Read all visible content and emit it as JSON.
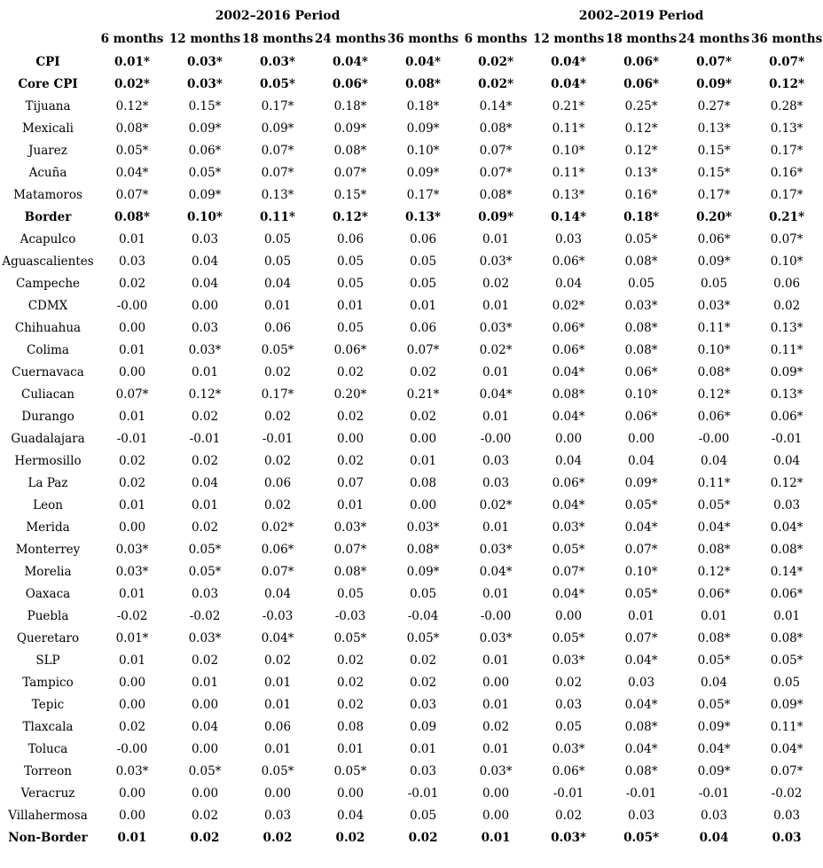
{
  "table": {
    "period_headers": [
      "2002–2016 Period",
      "2002–2019 Period"
    ],
    "column_headers": [
      "6 months",
      "12 months",
      "18 months",
      "24 months",
      "36 months",
      "6 months",
      "12 months",
      "18 months",
      "24 months",
      "36 months"
    ],
    "rows": [
      {
        "label": "CPI",
        "bold": true,
        "values": [
          "0.01*",
          "0.03*",
          "0.03*",
          "0.04*",
          "0.04*",
          "0.02*",
          "0.04*",
          "0.06*",
          "0.07*",
          "0.07*"
        ]
      },
      {
        "label": "Core CPI",
        "bold": true,
        "values": [
          "0.02*",
          "0.03*",
          "0.05*",
          "0.06*",
          "0.08*",
          "0.02*",
          "0.04*",
          "0.06*",
          "0.09*",
          "0.12*"
        ]
      },
      {
        "label": "Tijuana",
        "bold": false,
        "values": [
          "0.12*",
          "0.15*",
          "0.17*",
          "0.18*",
          "0.18*",
          "0.14*",
          "0.21*",
          "0.25*",
          "0.27*",
          "0.28*"
        ]
      },
      {
        "label": "Mexicali",
        "bold": false,
        "values": [
          "0.08*",
          "0.09*",
          "0.09*",
          "0.09*",
          "0.09*",
          "0.08*",
          "0.11*",
          "0.12*",
          "0.13*",
          "0.13*"
        ]
      },
      {
        "label": "Juarez",
        "bold": false,
        "values": [
          "0.05*",
          "0.06*",
          "0.07*",
          "0.08*",
          "0.10*",
          "0.07*",
          "0.10*",
          "0.12*",
          "0.15*",
          "0.17*"
        ]
      },
      {
        "label": "Acuña",
        "bold": false,
        "values": [
          "0.04*",
          "0.05*",
          "0.07*",
          "0.07*",
          "0.09*",
          "0.07*",
          "0.11*",
          "0.13*",
          "0.15*",
          "0.16*"
        ]
      },
      {
        "label": "Matamoros",
        "bold": false,
        "values": [
          "0.07*",
          "0.09*",
          "0.13*",
          "0.15*",
          "0.17*",
          "0.08*",
          "0.13*",
          "0.16*",
          "0.17*",
          "0.17*"
        ]
      },
      {
        "label": "Border",
        "bold": true,
        "values": [
          "0.08*",
          "0.10*",
          "0.11*",
          "0.12*",
          "0.13*",
          "0.09*",
          "0.14*",
          "0.18*",
          "0.20*",
          "0.21*"
        ]
      },
      {
        "label": "Acapulco",
        "bold": false,
        "values": [
          "0.01",
          "0.03",
          "0.05",
          "0.06",
          "0.06",
          "0.01",
          "0.03",
          "0.05*",
          "0.06*",
          "0.07*"
        ]
      },
      {
        "label": "Aguascalientes",
        "bold": false,
        "values": [
          "0.03",
          "0.04",
          "0.05",
          "0.05",
          "0.05",
          "0.03*",
          "0.06*",
          "0.08*",
          "0.09*",
          "0.10*"
        ]
      },
      {
        "label": "Campeche",
        "bold": false,
        "values": [
          "0.02",
          "0.04",
          "0.04",
          "0.05",
          "0.05",
          "0.02",
          "0.04",
          "0.05",
          "0.05",
          "0.06"
        ]
      },
      {
        "label": "CDMX",
        "bold": false,
        "values": [
          "-0.00",
          "0.00",
          "0.01",
          "0.01",
          "0.01",
          "0.01",
          "0.02*",
          "0.03*",
          "0.03*",
          "0.02"
        ]
      },
      {
        "label": "Chihuahua",
        "bold": false,
        "values": [
          "0.00",
          "0.03",
          "0.06",
          "0.05",
          "0.06",
          "0.03*",
          "0.06*",
          "0.08*",
          "0.11*",
          "0.13*"
        ]
      },
      {
        "label": "Colima",
        "bold": false,
        "values": [
          "0.01",
          "0.03*",
          "0.05*",
          "0.06*",
          "0.07*",
          "0.02*",
          "0.06*",
          "0.08*",
          "0.10*",
          "0.11*"
        ]
      },
      {
        "label": "Cuernavaca",
        "bold": false,
        "values": [
          "0.00",
          "0.01",
          "0.02",
          "0.02",
          "0.02",
          "0.01",
          "0.04*",
          "0.06*",
          "0.08*",
          "0.09*"
        ]
      },
      {
        "label": "Culiacan",
        "bold": false,
        "values": [
          "0.07*",
          "0.12*",
          "0.17*",
          "0.20*",
          "0.21*",
          "0.04*",
          "0.08*",
          "0.10*",
          "0.12*",
          "0.13*"
        ]
      },
      {
        "label": "Durango",
        "bold": false,
        "values": [
          "0.01",
          "0.02",
          "0.02",
          "0.02",
          "0.02",
          "0.01",
          "0.04*",
          "0.06*",
          "0.06*",
          "0.06*"
        ]
      },
      {
        "label": "Guadalajara",
        "bold": false,
        "values": [
          "-0.01",
          "-0.01",
          "-0.01",
          "0.00",
          "0.00",
          "-0.00",
          "0.00",
          "0.00",
          "-0.00",
          "-0.01"
        ]
      },
      {
        "label": "Hermosillo",
        "bold": false,
        "values": [
          "0.02",
          "0.02",
          "0.02",
          "0.02",
          "0.01",
          "0.03",
          "0.04",
          "0.04",
          "0.04",
          "0.04"
        ]
      },
      {
        "label": "La Paz",
        "bold": false,
        "values": [
          "0.02",
          "0.04",
          "0.06",
          "0.07",
          "0.08",
          "0.03",
          "0.06*",
          "0.09*",
          "0.11*",
          "0.12*"
        ]
      },
      {
        "label": "Leon",
        "bold": false,
        "values": [
          "0.01",
          "0.01",
          "0.02",
          "0.01",
          "0.00",
          "0.02*",
          "0.04*",
          "0.05*",
          "0.05*",
          "0.03"
        ]
      },
      {
        "label": "Merida",
        "bold": false,
        "values": [
          "0.00",
          "0.02",
          "0.02*",
          "0.03*",
          "0.03*",
          "0.01",
          "0.03*",
          "0.04*",
          "0.04*",
          "0.04*"
        ]
      },
      {
        "label": "Monterrey",
        "bold": false,
        "values": [
          "0.03*",
          "0.05*",
          "0.06*",
          "0.07*",
          "0.08*",
          "0.03*",
          "0.05*",
          "0.07*",
          "0.08*",
          "0.08*"
        ]
      },
      {
        "label": "Morelia",
        "bold": false,
        "values": [
          "0.03*",
          "0.05*",
          "0.07*",
          "0.08*",
          "0.09*",
          "0.04*",
          "0.07*",
          "0.10*",
          "0.12*",
          "0.14*"
        ]
      },
      {
        "label": "Oaxaca",
        "bold": false,
        "values": [
          "0.01",
          "0.03",
          "0.04",
          "0.05",
          "0.05",
          "0.01",
          "0.04*",
          "0.05*",
          "0.06*",
          "0.06*"
        ]
      },
      {
        "label": "Puebla",
        "bold": false,
        "values": [
          "-0.02",
          "-0.02",
          "-0.03",
          "-0.03",
          "-0.04",
          "-0.00",
          "0.00",
          "0.01",
          "0.01",
          "0.01"
        ]
      },
      {
        "label": "Queretaro",
        "bold": false,
        "values": [
          "0.01*",
          "0.03*",
          "0.04*",
          "0.05*",
          "0.05*",
          "0.03*",
          "0.05*",
          "0.07*",
          "0.08*",
          "0.08*"
        ]
      },
      {
        "label": "SLP",
        "bold": false,
        "values": [
          "0.01",
          "0.02",
          "0.02",
          "0.02",
          "0.02",
          "0.01",
          "0.03*",
          "0.04*",
          "0.05*",
          "0.05*"
        ]
      },
      {
        "label": "Tampico",
        "bold": false,
        "values": [
          "0.00",
          "0.01",
          "0.01",
          "0.02",
          "0.02",
          "0.00",
          "0.02",
          "0.03",
          "0.04",
          "0.05"
        ]
      },
      {
        "label": "Tepic",
        "bold": false,
        "values": [
          "0.00",
          "0.00",
          "0.01",
          "0.02",
          "0.03",
          "0.01",
          "0.03",
          "0.04*",
          "0.05*",
          "0.09*"
        ]
      },
      {
        "label": "Tlaxcala",
        "bold": false,
        "values": [
          "0.02",
          "0.04",
          "0.06",
          "0.08",
          "0.09",
          "0.02",
          "0.05",
          "0.08*",
          "0.09*",
          "0.11*"
        ]
      },
      {
        "label": "Toluca",
        "bold": false,
        "values": [
          "-0.00",
          "0.00",
          "0.01",
          "0.01",
          "0.01",
          "0.01",
          "0.03*",
          "0.04*",
          "0.04*",
          "0.04*"
        ]
      },
      {
        "label": "Torreon",
        "bold": false,
        "values": [
          "0.03*",
          "0.05*",
          "0.05*",
          "0.05*",
          "0.03",
          "0.03*",
          "0.06*",
          "0.08*",
          "0.09*",
          "0.07*"
        ]
      },
      {
        "label": "Veracruz",
        "bold": false,
        "values": [
          "0.00",
          "0.00",
          "0.00",
          "0.00",
          "-0.01",
          "0.00",
          "-0.01",
          "-0.01",
          "-0.01",
          "-0.02"
        ]
      },
      {
        "label": "Villahermosa",
        "bold": false,
        "values": [
          "0.00",
          "0.02",
          "0.03",
          "0.04",
          "0.05",
          "0.00",
          "0.02",
          "0.03",
          "0.03",
          "0.03"
        ]
      },
      {
        "label": "Non-Border",
        "bold": true,
        "values": [
          "0.01",
          "0.02",
          "0.02",
          "0.02",
          "0.02",
          "0.01",
          "0.03*",
          "0.05*",
          "0.04",
          "0.03"
        ]
      }
    ]
  }
}
